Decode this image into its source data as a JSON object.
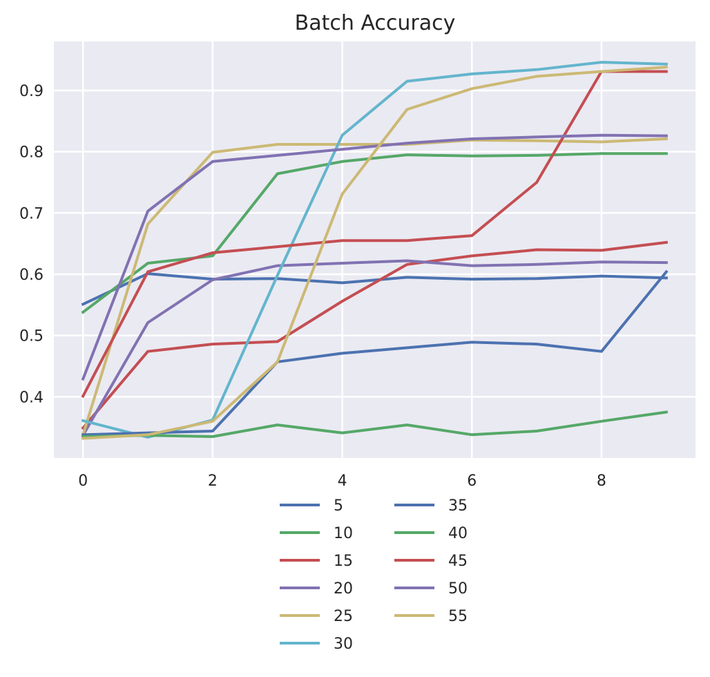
{
  "chart_data": {
    "type": "line",
    "title": "Batch Accuracy",
    "xlabel": "",
    "ylabel": "",
    "x": [
      0,
      1,
      2,
      3,
      4,
      5,
      6,
      7,
      8,
      9
    ],
    "xlim": [
      -0.45,
      9.45
    ],
    "ylim": [
      0.3,
      0.98
    ],
    "xticks": [
      0,
      2,
      4,
      6,
      8
    ],
    "yticks": [
      0.4,
      0.5,
      0.6,
      0.7,
      0.8,
      0.9
    ],
    "grid": true,
    "legend": {
      "position": "below plot",
      "columns": 2
    },
    "background": "#EAEAF2",
    "series": [
      {
        "name": "5",
        "color": "#4C72B0",
        "values": [
          0.551,
          0.601,
          0.592,
          0.593,
          0.586,
          0.595,
          0.592,
          0.593,
          0.597,
          0.594
        ]
      },
      {
        "name": "10",
        "color": "#55A868",
        "values": [
          0.538,
          0.618,
          0.63,
          0.764,
          0.784,
          0.795,
          0.793,
          0.794,
          0.797,
          0.797
        ]
      },
      {
        "name": "15",
        "color": "#C44E52",
        "values": [
          0.349,
          0.474,
          0.486,
          0.49,
          0.556,
          0.616,
          0.63,
          0.64,
          0.639,
          0.652
        ]
      },
      {
        "name": "20",
        "color": "#8172B2",
        "values": [
          0.337,
          0.521,
          0.591,
          0.614,
          0.618,
          0.622,
          0.614,
          0.616,
          0.62,
          0.619
        ]
      },
      {
        "name": "25",
        "color": "#CCB974",
        "values": [
          0.338,
          0.682,
          0.799,
          0.812,
          0.812,
          0.812,
          0.819,
          0.818,
          0.816,
          0.821
        ]
      },
      {
        "name": "30",
        "color": "#64B5CD",
        "values": [
          0.361,
          0.334,
          0.362,
          0.598,
          0.827,
          0.915,
          0.927,
          0.934,
          0.946,
          0.943
        ]
      },
      {
        "name": "35",
        "color": "#4C72B0",
        "values": [
          0.338,
          0.341,
          0.344,
          0.457,
          0.471,
          0.48,
          0.489,
          0.486,
          0.474,
          0.604
        ]
      },
      {
        "name": "40",
        "color": "#55A868",
        "values": [
          0.335,
          0.337,
          0.335,
          0.354,
          0.341,
          0.354,
          0.338,
          0.344,
          0.36,
          0.375
        ]
      },
      {
        "name": "45",
        "color": "#C44E52",
        "values": [
          0.401,
          0.604,
          0.635,
          0.645,
          0.655,
          0.655,
          0.663,
          0.75,
          0.931,
          0.931
        ]
      },
      {
        "name": "50",
        "color": "#8172B2",
        "values": [
          0.429,
          0.703,
          0.784,
          0.794,
          0.804,
          0.814,
          0.821,
          0.824,
          0.827,
          0.826
        ]
      },
      {
        "name": "55",
        "color": "#CCB974",
        "values": [
          0.332,
          0.338,
          0.36,
          0.457,
          0.731,
          0.869,
          0.903,
          0.923,
          0.931,
          0.938
        ]
      }
    ]
  }
}
